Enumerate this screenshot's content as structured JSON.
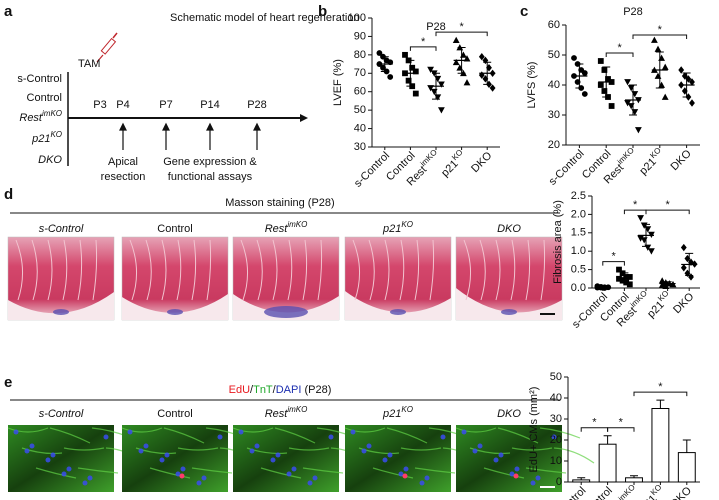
{
  "panel_labels": [
    "a",
    "b",
    "c",
    "d",
    "e"
  ],
  "schematic": {
    "title": "Schematic model of heart regeneration",
    "groups": [
      {
        "text": "s-Control"
      },
      {
        "text": "Control"
      },
      {
        "text": "Rest",
        "sup": "imKO"
      },
      {
        "text": "p21",
        "sup": "KO"
      },
      {
        "text": "DKO"
      }
    ],
    "tam": "TAM",
    "timepoints": [
      "P3",
      "P4",
      "P7",
      "P14",
      "P28"
    ],
    "steps": [
      [
        "Apical",
        "resection"
      ],
      [
        "Gene expression &",
        "functional assays"
      ]
    ]
  },
  "masson": {
    "title": "Masson staining (P28)",
    "labels": [
      {
        "text": "s-Control"
      },
      {
        "text": "Control"
      },
      {
        "text": "Rest",
        "sup": "imKO"
      },
      {
        "text": "p21",
        "sup": "KO"
      },
      {
        "text": "DKO"
      }
    ]
  },
  "edu": {
    "title_parts": [
      {
        "text": "EdU",
        "color": "#e8191f"
      },
      {
        "text": "/",
        "color": "#111111"
      },
      {
        "text": "TnT",
        "color": "#1fa82a"
      },
      {
        "text": "/",
        "color": "#111111"
      },
      {
        "text": "DAPI",
        "color": "#1c2fb0"
      },
      {
        "text": " (P28)",
        "color": "#111111"
      }
    ],
    "labels": [
      {
        "text": "s-Control"
      },
      {
        "text": "Control"
      },
      {
        "text": "Rest",
        "sup": "imKO"
      },
      {
        "text": "p21",
        "sup": "KO"
      },
      {
        "text": "DKO"
      }
    ]
  },
  "chart_data": [
    {
      "type": "strip",
      "title": "P28",
      "y_label": "LVEF (%)",
      "categories": [
        "s-Control",
        "Control",
        "Rest",
        "p21",
        "DKO"
      ],
      "category_superscripts": [
        null,
        null,
        "imKO",
        "KO",
        null
      ],
      "markers": [
        "circle",
        "square",
        "triangle-down",
        "triangle",
        "diamond"
      ],
      "points": [
        [
          81,
          79,
          77,
          76,
          75,
          73,
          71,
          68
        ],
        [
          80,
          77,
          73,
          71,
          70,
          66,
          63,
          59
        ],
        [
          72,
          70,
          67,
          64,
          62,
          60,
          57,
          50
        ],
        [
          88,
          84,
          80,
          78,
          76,
          73,
          70,
          65
        ],
        [
          79,
          77,
          73,
          70,
          69,
          67,
          64,
          62
        ]
      ],
      "means": [
        75,
        70,
        63,
        77,
        70
      ],
      "errors": [
        4,
        7,
        7,
        7,
        6
      ],
      "significance": [
        {
          "from": 1,
          "to": 2,
          "label": "*"
        },
        {
          "from": 2,
          "to": 4,
          "label": "*"
        }
      ],
      "ylim": [
        30,
        100
      ],
      "yticks": [
        30,
        40,
        50,
        60,
        70,
        80,
        90,
        100
      ],
      "color": "#000000"
    },
    {
      "type": "strip",
      "title": "P28",
      "y_label": "LVFS (%)",
      "categories": [
        "s-Control",
        "Control",
        "Rest",
        "p21",
        "DKO"
      ],
      "category_superscripts": [
        null,
        null,
        "imKO",
        "KO",
        null
      ],
      "markers": [
        "circle",
        "square",
        "triangle-down",
        "triangle",
        "diamond"
      ],
      "points": [
        [
          49,
          47,
          45,
          44,
          43,
          41,
          39,
          37
        ],
        [
          48,
          45,
          42,
          41,
          40,
          38,
          36,
          33
        ],
        [
          41,
          39,
          37,
          35,
          34,
          33,
          31,
          25
        ],
        [
          55,
          52,
          49,
          46,
          45,
          43,
          40,
          36
        ],
        [
          45,
          43,
          42,
          41,
          40,
          38,
          36,
          34
        ]
      ],
      "means": [
        43,
        41,
        35,
        45,
        40
      ],
      "errors": [
        4,
        5,
        5,
        6,
        4
      ],
      "significance": [
        {
          "from": 1,
          "to": 2,
          "label": "*"
        },
        {
          "from": 2,
          "to": 4,
          "label": "*"
        }
      ],
      "ylim": [
        20,
        60
      ],
      "yticks": [
        20,
        30,
        40,
        50,
        60
      ],
      "color": "#000000"
    },
    {
      "type": "strip",
      "y_label": "Fibrosis area (%)",
      "categories": [
        "s-Control",
        "Control",
        "Rest",
        "p21",
        "DKO"
      ],
      "category_superscripts": [
        null,
        null,
        "imKO",
        "KO",
        null
      ],
      "markers": [
        "circle",
        "square",
        "triangle-down",
        "triangle",
        "diamond"
      ],
      "points": [
        [
          0.05,
          0.03,
          0.02,
          0.02,
          0.01,
          0.01,
          0.0
        ],
        [
          0.5,
          0.4,
          0.3,
          0.3,
          0.25,
          0.2,
          0.15,
          0.1
        ],
        [
          1.9,
          1.7,
          1.6,
          1.45,
          1.35,
          1.3,
          1.1,
          1.0
        ],
        [
          0.2,
          0.15,
          0.12,
          0.1,
          0.08,
          0.05
        ],
        [
          1.1,
          0.8,
          0.7,
          0.65,
          0.55,
          0.4,
          0.3
        ]
      ],
      "means": [
        0.02,
        0.28,
        1.43,
        0.12,
        0.64
      ],
      "errors": [
        0.02,
        0.13,
        0.3,
        0.05,
        0.3
      ],
      "significance": [
        {
          "from": 0,
          "to": 1,
          "label": "*"
        },
        {
          "from": 1,
          "to": 2,
          "label": "*"
        },
        {
          "from": 2,
          "to": 4,
          "label": "*"
        }
      ],
      "ylim": [
        0,
        2.5
      ],
      "yticks": [
        {
          "value": 0,
          "label": "0.0"
        },
        0.5,
        {
          "value": 1,
          "label": "1.0"
        },
        1.5,
        {
          "value": 2,
          "label": "2.0"
        },
        2.5
      ],
      "color": "#000000"
    },
    {
      "type": "bar",
      "y_label": "EdU+ CMs (mm²)",
      "categories": [
        "s-Control",
        "Control",
        "Rest",
        "p21",
        "DKO"
      ],
      "category_superscripts": [
        null,
        null,
        "imKO",
        "KO",
        null
      ],
      "values": [
        1,
        18,
        2,
        35,
        14
      ],
      "errors": [
        1,
        4,
        1,
        4,
        6
      ],
      "significance": [
        {
          "from": 0,
          "to": 1,
          "label": "*"
        },
        {
          "from": 1,
          "to": 2,
          "label": "*"
        },
        {
          "from": 2,
          "to": 4,
          "label": "*"
        }
      ],
      "ylim": [
        0,
        50
      ],
      "yticks": [
        0,
        10,
        20,
        30,
        40,
        50
      ],
      "color": "#000000"
    }
  ]
}
